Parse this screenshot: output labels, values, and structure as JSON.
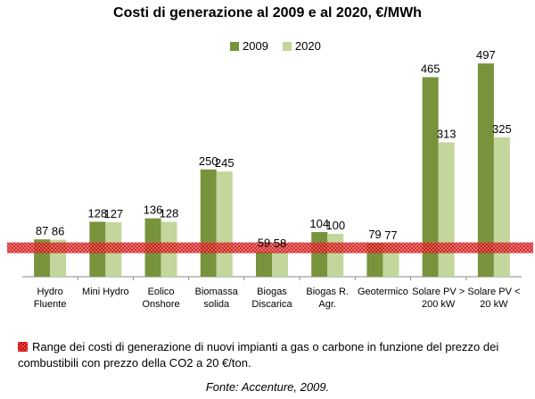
{
  "chart_data": {
    "type": "bar",
    "title": "Costi di generazione al 2009 e al 2020, €/MWh",
    "categories": [
      [
        "Hydro",
        "Fluente"
      ],
      [
        "Mini Hydro"
      ],
      [
        "Eolico",
        "Onshore"
      ],
      [
        "Biomassa",
        "solida"
      ],
      [
        "Biogas",
        "Discarica"
      ],
      [
        "Biogas R.",
        "Agr."
      ],
      [
        "Geotermico"
      ],
      [
        "Solare PV >",
        "200 kW"
      ],
      [
        "Solare PV <",
        "20 kW"
      ]
    ],
    "series": [
      {
        "name": "2009",
        "values": [
          87,
          128,
          136,
          250,
          59,
          104,
          79,
          465,
          497
        ],
        "color": "#77933c"
      },
      {
        "name": "2020",
        "values": [
          86,
          127,
          128,
          245,
          58,
          100,
          77,
          313,
          325
        ],
        "color": "#c3d69b"
      }
    ],
    "ylim": [
      0,
      520
    ],
    "grid": false,
    "legend_position": "top-center",
    "gas_coal_band": {
      "from": 55,
      "to": 80,
      "color": "#c90000"
    }
  },
  "note": "Range dei costi di generazione di nuovi impianti a gas o carbone in funzione del prezzo dei combustibili  con prezzo della CO2 a 20 €/ton.",
  "source": "Fonte: Accenture, 2009."
}
